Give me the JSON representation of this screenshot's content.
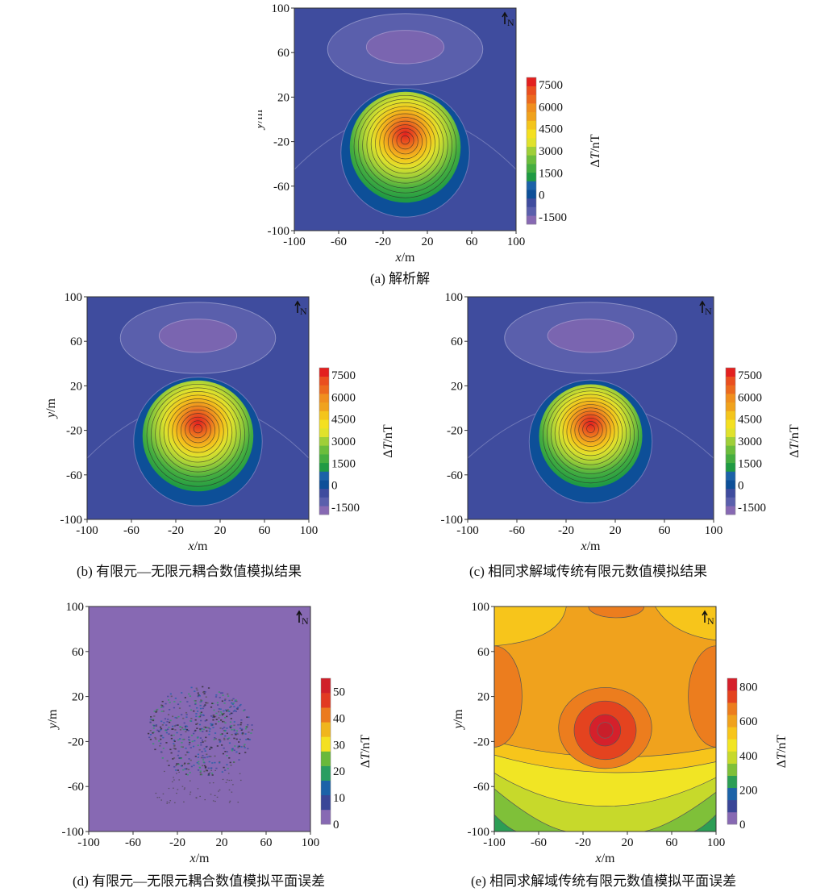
{
  "axes": {
    "xlabel_var": "x",
    "ylabel_var": "y",
    "unit": "/m",
    "north": "N"
  },
  "colorbar_label": {
    "delta": "Δ",
    "var": "T",
    "unit": "/nT"
  },
  "chart_data": [
    {
      "id": "a",
      "type": "heatmap",
      "caption": "(a) 解析解",
      "x_ticks": [
        "-100",
        "-60",
        "-20",
        "20",
        "60",
        "100"
      ],
      "y_ticks": [
        "100",
        "60",
        "20",
        "-20",
        "-60",
        "-100"
      ],
      "xlim": [
        -100,
        100
      ],
      "ylim": [
        -100,
        100
      ],
      "colorbar_ticks": [
        "7500",
        "6000",
        "4500",
        "3000",
        "1500",
        "0",
        "-1500"
      ],
      "colorbar_range": [
        -2000,
        8000
      ],
      "anomaly": {
        "peak_value": 7800,
        "center": [
          0,
          -15
        ],
        "positive_radius": 50,
        "negative_low_center": [
          0,
          65
        ],
        "negative_low_value": -1400
      }
    },
    {
      "id": "b",
      "type": "heatmap",
      "caption": "(b) 有限元—无限元耦合数值模拟结果",
      "x_ticks": [
        "-100",
        "-60",
        "-20",
        "20",
        "60",
        "100"
      ],
      "y_ticks": [
        "100",
        "60",
        "20",
        "-20",
        "-60",
        "-100"
      ],
      "xlim": [
        -100,
        100
      ],
      "ylim": [
        -100,
        100
      ],
      "colorbar_ticks": [
        "7500",
        "6000",
        "4500",
        "3000",
        "1500",
        "0",
        "-1500"
      ],
      "colorbar_range": [
        -2000,
        8000
      ],
      "anomaly": {
        "peak_value": 7800,
        "center": [
          0,
          -15
        ],
        "positive_radius": 50,
        "negative_low_center": [
          0,
          65
        ],
        "negative_low_value": -1400
      }
    },
    {
      "id": "c",
      "type": "heatmap",
      "caption": "(c) 相同求解域传统有限元数值模拟结果",
      "x_ticks": [
        "-100",
        "-60",
        "-20",
        "20",
        "60",
        "100"
      ],
      "y_ticks": [
        "100",
        "60",
        "20",
        "-20",
        "-60",
        "-100"
      ],
      "xlim": [
        -100,
        100
      ],
      "ylim": [
        -100,
        100
      ],
      "colorbar_ticks": [
        "7500",
        "6000",
        "4500",
        "3000",
        "1500",
        "0",
        "-1500"
      ],
      "colorbar_range": [
        -2000,
        8000
      ],
      "anomaly": {
        "peak_value": 7000,
        "center": [
          0,
          -15
        ],
        "positive_radius": 42,
        "negative_low_center": [
          0,
          65
        ],
        "negative_low_value": -1600
      }
    },
    {
      "id": "d",
      "type": "heatmap",
      "caption": "(d) 有限元—无限元耦合数值模拟平面误差",
      "x_ticks": [
        "-100",
        "-60",
        "-20",
        "20",
        "60",
        "100"
      ],
      "y_ticks": [
        "100",
        "60",
        "20",
        "-20",
        "-60",
        "-100"
      ],
      "xlim": [
        -100,
        100
      ],
      "ylim": [
        -100,
        100
      ],
      "colorbar_ticks": [
        "50",
        "40",
        "30",
        "20",
        "10",
        "0"
      ],
      "colorbar_range": [
        0,
        55
      ],
      "background_value": 0,
      "noise_center": [
        0,
        -10
      ],
      "noise_radius": 45
    },
    {
      "id": "e",
      "type": "heatmap",
      "caption": "(e) 相同求解域传统有限元数值模拟平面误差",
      "x_ticks": [
        "-100",
        "-60",
        "-20",
        "20",
        "60",
        "100"
      ],
      "y_ticks": [
        "100",
        "60",
        "20",
        "-20",
        "-60",
        "-100"
      ],
      "xlim": [
        -100,
        100
      ],
      "ylim": [
        -100,
        100
      ],
      "colorbar_ticks": [
        "800",
        "600",
        "400",
        "200",
        "0"
      ],
      "colorbar_range": [
        0,
        850
      ],
      "peak_value": 800,
      "center": [
        0,
        -10
      ]
    }
  ]
}
